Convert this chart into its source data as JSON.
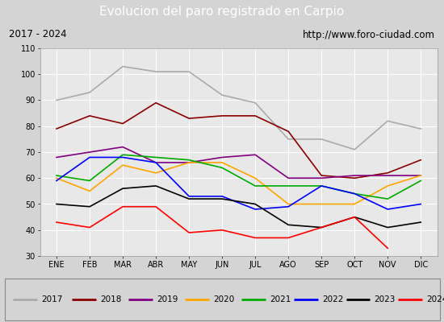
{
  "title": "Evolucion del paro registrado en Carpio",
  "subtitle_left": "2017 - 2024",
  "subtitle_right": "http://www.foro-ciudad.com",
  "months": [
    "ENE",
    "FEB",
    "MAR",
    "ABR",
    "MAY",
    "JUN",
    "JUL",
    "AGO",
    "SEP",
    "OCT",
    "NOV",
    "DIC"
  ],
  "ylim": [
    30,
    110
  ],
  "yticks": [
    30,
    40,
    50,
    60,
    70,
    80,
    90,
    100,
    110
  ],
  "series": {
    "2017": [
      90,
      93,
      103,
      101,
      101,
      92,
      89,
      75,
      75,
      71,
      82,
      79
    ],
    "2018": [
      79,
      84,
      81,
      89,
      83,
      84,
      84,
      78,
      61,
      60,
      62,
      67
    ],
    "2019": [
      68,
      70,
      72,
      66,
      66,
      68,
      69,
      60,
      60,
      61,
      61,
      61
    ],
    "2020": [
      60,
      55,
      65,
      62,
      66,
      66,
      60,
      50,
      50,
      50,
      57,
      61
    ],
    "2021": [
      61,
      59,
      69,
      68,
      67,
      64,
      57,
      57,
      57,
      54,
      52,
      59
    ],
    "2022": [
      59,
      68,
      68,
      66,
      53,
      53,
      48,
      49,
      57,
      54,
      48,
      50
    ],
    "2023": [
      50,
      49,
      56,
      57,
      52,
      52,
      50,
      42,
      41,
      45,
      41,
      43
    ],
    "2024": [
      43,
      41,
      49,
      49,
      39,
      40,
      37,
      37,
      null,
      45,
      33,
      null
    ]
  },
  "colors": {
    "2017": "#aaaaaa",
    "2018": "#8b0000",
    "2019": "#800080",
    "2020": "#ffa500",
    "2021": "#00aa00",
    "2022": "#0000ff",
    "2023": "#000000",
    "2024": "#ff0000"
  },
  "background_color": "#d4d4d4",
  "plot_bg_color": "#e8e8e8",
  "title_bg_color": "#4f81bd",
  "title_text_color": "#ffffff",
  "subtitle_bg_color": "#c8c8c8",
  "subtitle_text_color": "#000000",
  "legend_bg_color": "#ffffff"
}
